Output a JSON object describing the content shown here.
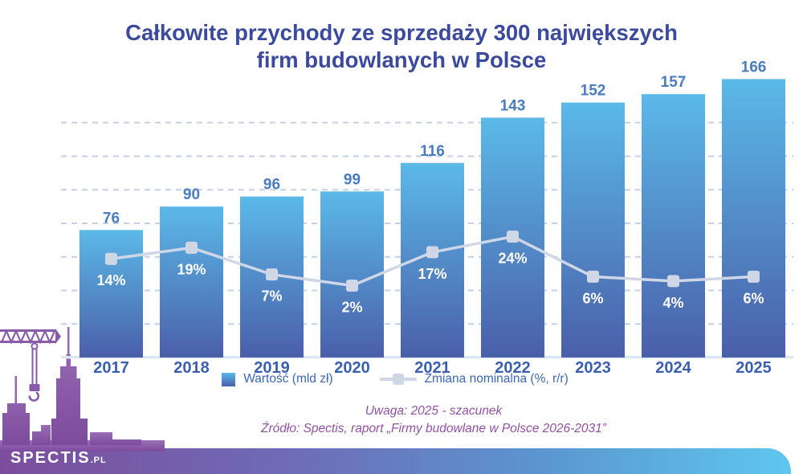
{
  "title": {
    "line1": "Całkowite przychody ze sprzedaży 300 największych",
    "line2": "firm budowlanych w Polsce"
  },
  "chart_data": {
    "type": "bar",
    "categories": [
      "2017",
      "2018",
      "2019",
      "2020",
      "2021",
      "2022",
      "2023",
      "2024",
      "2025"
    ],
    "series": [
      {
        "name": "Wartość (mld zł)",
        "type": "bar",
        "values": [
          76,
          90,
          96,
          99,
          116,
          143,
          152,
          157,
          166
        ]
      },
      {
        "name": "Zmiana nominalna (%, r/r)",
        "type": "line",
        "unit": "%",
        "values": [
          14,
          19,
          7,
          2,
          17,
          24,
          6,
          4,
          6
        ]
      }
    ],
    "title": "Całkowite przychody ze sprzedaży 300 największych firm budowlanych w Polsce",
    "xlabel": "",
    "ylabel": "",
    "bar_axis": {
      "min": 0,
      "max": 175,
      "gridline_step": 20,
      "gridlines_visible": [
        20,
        40,
        60,
        80,
        100,
        120,
        140
      ]
    },
    "grid": "dashed horizontal, no axis labels",
    "legend_position": "bottom"
  },
  "legend": {
    "bar_label": "Wartość (mld zł)",
    "line_label": "Zmiana nominalna (%, r/r)"
  },
  "notes": {
    "line1": "Uwaga: 2025 - szacunek",
    "line2": "Źródło: Spectis, raport „Firmy budowlane w Polsce 2026-2031”"
  },
  "logo": {
    "name": "SPECTIS",
    "suffix": ".PL"
  },
  "colors": {
    "title": "#3b4a9e",
    "bar_top": "#5bb9e8",
    "bar_bottom": "#4a5fa9",
    "value_label": "#4a7cc0",
    "year_label": "#3a5fb2",
    "gridline": "#c4d0e5",
    "axis_strip": "#dde6f3",
    "pct_line": "#cfd7e7",
    "pct_label": "#ffffff",
    "legend_text": "#3a68b6",
    "note_text": "#9351a6",
    "band_purple": "#7c4d9d",
    "band_mid": "#5b95cf",
    "band_blue": "#5ec7ee",
    "skyline_top": "#9b6db6",
    "skyline_bottom": "#7c4b9c"
  }
}
